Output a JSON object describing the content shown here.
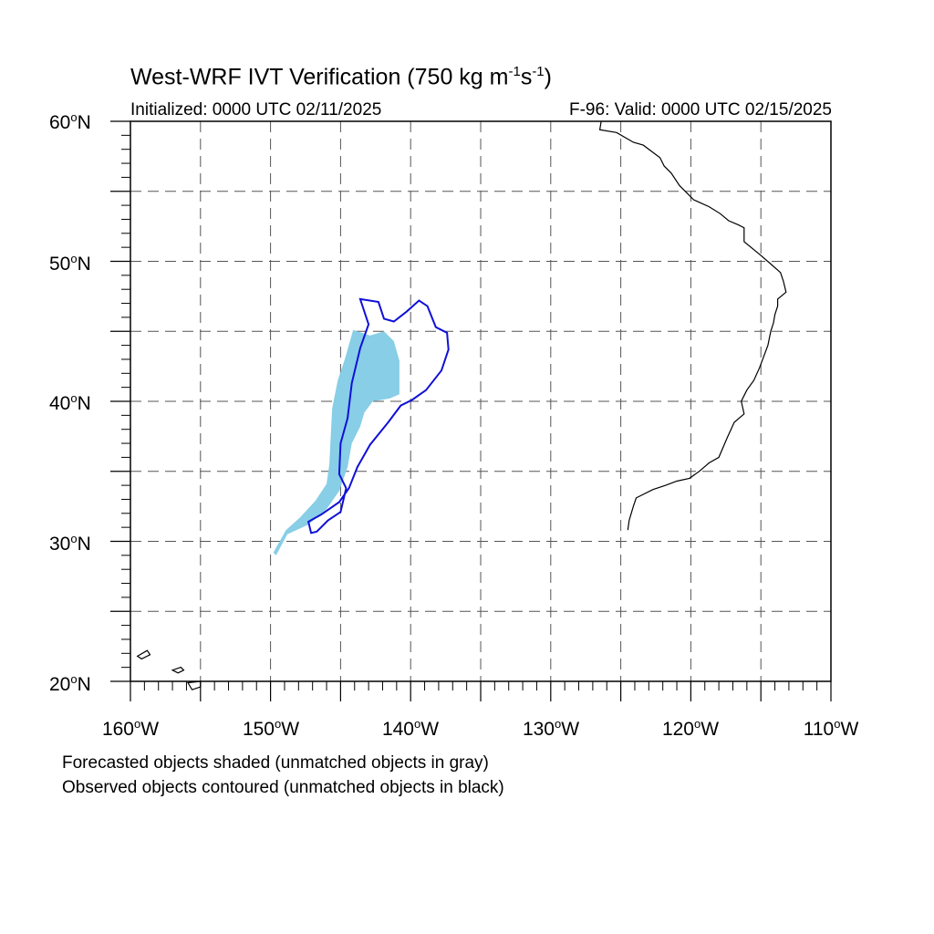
{
  "title": {
    "main": "West-WRF IVT Verification (750 kg m",
    "exp1": "-1",
    "mid": "s",
    "exp2": "-1",
    "end": ")"
  },
  "subtitle": {
    "initialized": "Initialized: 0000 UTC 02/11/2025",
    "valid": "F-96: Valid: 0000 UTC 02/15/2025"
  },
  "lat_labels": [
    "60oN",
    "50oN",
    "40oN",
    "30oN",
    "20oN"
  ],
  "lon_labels": [
    "160oW",
    "150oW",
    "140oW",
    "130oW",
    "120oW",
    "110oW"
  ],
  "footnotes": [
    "Forecasted objects shaded (unmatched objects in gray)",
    "Observed objects contoured (unmatched objects in black)"
  ],
  "map_extent": {
    "lon_min": -160,
    "lon_max": -110,
    "lat_min": 20,
    "lat_max": 60
  },
  "colors": {
    "forecast_fill": "#87CEE6",
    "observed_contour": "#1010D8",
    "coastline": "#000000",
    "grid": "#555555"
  },
  "forecast_object": [
    [
      -144.1,
      45.1
    ],
    [
      -142.9,
      44.7
    ],
    [
      -141.9,
      45.0
    ],
    [
      -141.2,
      44.3
    ],
    [
      -140.8,
      42.9
    ],
    [
      -140.8,
      40.5
    ],
    [
      -141.5,
      40.2
    ],
    [
      -142.7,
      40.0
    ],
    [
      -143.3,
      39.2
    ],
    [
      -143.6,
      38.2
    ],
    [
      -144.2,
      37.0
    ],
    [
      -144.5,
      35.3
    ],
    [
      -145.1,
      33.6
    ],
    [
      -146.0,
      32.3
    ],
    [
      -147.3,
      31.2
    ],
    [
      -148.8,
      30.5
    ],
    [
      -149.6,
      29.0
    ],
    [
      -149.8,
      29.2
    ],
    [
      -148.9,
      30.8
    ],
    [
      -147.9,
      31.7
    ],
    [
      -146.8,
      32.9
    ],
    [
      -146.0,
      34.1
    ],
    [
      -145.8,
      35.5
    ],
    [
      -145.7,
      37.5
    ],
    [
      -145.6,
      39.5
    ],
    [
      -145.2,
      41.5
    ],
    [
      -144.7,
      43.0
    ],
    [
      -144.1,
      45.1
    ]
  ],
  "observed_object": [
    [
      -143.6,
      47.3
    ],
    [
      -142.3,
      47.1
    ],
    [
      -141.9,
      45.9
    ],
    [
      -141.2,
      45.7
    ],
    [
      -140.3,
      46.4
    ],
    [
      -139.4,
      47.2
    ],
    [
      -138.8,
      46.8
    ],
    [
      -138.2,
      45.3
    ],
    [
      -137.4,
      44.9
    ],
    [
      -137.3,
      43.7
    ],
    [
      -137.8,
      42.2
    ],
    [
      -138.9,
      40.8
    ],
    [
      -139.9,
      40.1
    ],
    [
      -140.7,
      39.7
    ],
    [
      -141.6,
      38.5
    ],
    [
      -142.9,
      36.9
    ],
    [
      -143.8,
      35.3
    ],
    [
      -144.4,
      33.8
    ],
    [
      -145.1,
      32.8
    ],
    [
      -146.4,
      31.9
    ],
    [
      -147.3,
      31.4
    ],
    [
      -147.1,
      30.6
    ],
    [
      -146.7,
      30.7
    ],
    [
      -145.9,
      31.5
    ],
    [
      -145.0,
      32.1
    ],
    [
      -144.6,
      33.8
    ],
    [
      -145.1,
      34.8
    ],
    [
      -145.0,
      37.0
    ],
    [
      -144.5,
      38.8
    ],
    [
      -144.2,
      41.3
    ],
    [
      -143.6,
      43.8
    ],
    [
      -143.0,
      45.5
    ],
    [
      -143.4,
      46.7
    ],
    [
      -143.6,
      47.3
    ]
  ],
  "coastline": [
    [
      -126.4,
      60.0
    ],
    [
      -126.5,
      59.4
    ],
    [
      -125.3,
      59.2
    ],
    [
      -124.1,
      58.5
    ],
    [
      -123.4,
      58.3
    ],
    [
      -122.2,
      57.4
    ],
    [
      -121.9,
      56.8
    ],
    [
      -121.4,
      56.3
    ],
    [
      -120.8,
      55.4
    ],
    [
      -119.8,
      54.4
    ],
    [
      -118.7,
      53.9
    ],
    [
      -117.9,
      53.4
    ],
    [
      -117.3,
      52.9
    ],
    [
      -116.6,
      52.6
    ],
    [
      -116.2,
      52.4
    ],
    [
      -116.2,
      51.4
    ],
    [
      -115.1,
      50.5
    ],
    [
      -114.4,
      49.9
    ],
    [
      -113.6,
      49.2
    ],
    [
      -113.4,
      48.6
    ],
    [
      -113.2,
      47.8
    ],
    [
      -113.8,
      47.3
    ],
    [
      -113.8,
      46.8
    ],
    [
      -114.0,
      46.2
    ],
    [
      -114.1,
      45.6
    ],
    [
      -114.3,
      45.0
    ],
    [
      -114.5,
      44.0
    ],
    [
      -114.8,
      43.2
    ],
    [
      -115.1,
      42.4
    ],
    [
      -115.5,
      41.5
    ],
    [
      -116.0,
      40.8
    ],
    [
      -116.4,
      40.0
    ],
    [
      -116.2,
      39.1
    ],
    [
      -116.9,
      38.5
    ],
    [
      -117.4,
      37.4
    ],
    [
      -118.0,
      36.0
    ],
    [
      -118.7,
      35.6
    ],
    [
      -119.4,
      35.0
    ],
    [
      -120.1,
      34.5
    ],
    [
      -121.0,
      34.3
    ],
    [
      -121.8,
      34.0
    ],
    [
      -122.7,
      33.7
    ],
    [
      -123.9,
      33.1
    ],
    [
      -124.1,
      32.5
    ],
    [
      -124.4,
      31.5
    ],
    [
      -124.5,
      30.8
    ]
  ],
  "islands": [
    [
      [
        -158.8,
        22.2
      ],
      [
        -159.5,
        21.8
      ],
      [
        -159.2,
        21.6
      ],
      [
        -158.6,
        21.9
      ],
      [
        -158.8,
        22.2
      ]
    ],
    [
      [
        -156.4,
        21.0
      ],
      [
        -157.0,
        20.8
      ],
      [
        -156.6,
        20.6
      ],
      [
        -156.2,
        20.8
      ],
      [
        -156.4,
        21.0
      ]
    ],
    [
      [
        -155.0,
        20.0
      ],
      [
        -155.9,
        19.9
      ],
      [
        -155.6,
        19.4
      ],
      [
        -155.0,
        19.6
      ],
      [
        -155.0,
        20.0
      ]
    ]
  ]
}
